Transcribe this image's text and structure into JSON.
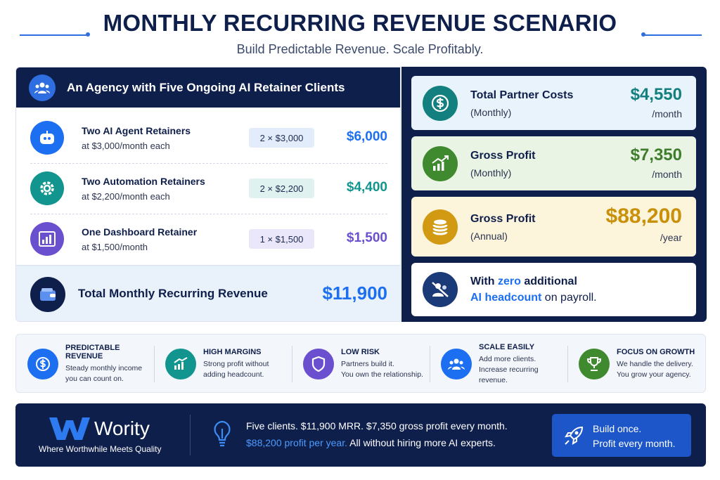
{
  "header": {
    "title": "MONTHLY RECURRING REVENUE SCENARIO",
    "subtitle": "Build Predictable Revenue. Scale Profitably."
  },
  "clients": {
    "heading": "An Agency with Five Ongoing AI Retainer Clients",
    "rows": [
      {
        "name": "Two AI Agent Retainers",
        "detail": "at $3,000/month each",
        "formula": "2 × $3,000",
        "amount": "$6,000"
      },
      {
        "name": "Two Automation Retainers",
        "detail": "at $2,200/month each",
        "formula": "2 × $2,200",
        "amount": "$4,400"
      },
      {
        "name": "One Dashboard Retainer",
        "detail": "at $1,500/month",
        "formula": "1 × $1,500",
        "amount": "$1,500"
      }
    ],
    "total": {
      "label": "Total Monthly Recurring Revenue",
      "amount": "$11,900"
    }
  },
  "results": {
    "cards": [
      {
        "title": "Total Partner Costs",
        "period": "(Monthly)",
        "amount": "$4,550",
        "unit": "/month"
      },
      {
        "title": "Gross Profit",
        "period": "(Monthly)",
        "amount": "$7,350",
        "unit": "/month"
      },
      {
        "title": "Gross Profit",
        "period": "(Annual)",
        "amount": "$88,200",
        "unit": "/year"
      }
    ],
    "statement": {
      "start": "With",
      "highlight": "zero",
      "middle": "additional",
      "highlight2": "AI headcount",
      "end": "on payroll."
    }
  },
  "benefits": [
    {
      "title": "PREDICTABLE REVENUE",
      "lines": [
        "Steady monthly income",
        "you can count on."
      ]
    },
    {
      "title": "HIGH MARGINS",
      "lines": [
        "Strong profit without",
        "adding headcount."
      ]
    },
    {
      "title": "LOW RISK",
      "lines": [
        "Partners build it.",
        "You own the relationship."
      ]
    },
    {
      "title": "SCALE EASILY",
      "lines": [
        "Add more clients.",
        "Increase recurring revenue."
      ]
    },
    {
      "title": "FOCUS ON GROWTH",
      "lines": [
        "We handle the delivery.",
        "You grow your agency."
      ]
    }
  ],
  "footer": {
    "brand": "Wority",
    "tagline": "Where Worthwhile Meets Quality",
    "message": {
      "line1": "Five clients. $11,900 MRR. $7,350 gross profit every month.",
      "highlight": "$88,200 profit per year.",
      "rest": "All without hiring more AI experts."
    },
    "cta": [
      "Build once.",
      "Profit every month."
    ]
  }
}
